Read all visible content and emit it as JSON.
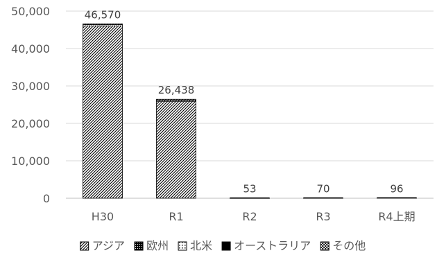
{
  "chart_data": {
    "type": "bar",
    "stacked": true,
    "title": "",
    "xlabel": "",
    "ylabel": "",
    "categories": [
      "H30",
      "R1",
      "R2",
      "R3",
      "R4上期"
    ],
    "ylim": [
      0,
      50000
    ],
    "yticks": [
      0,
      10000,
      20000,
      30000,
      40000,
      50000
    ],
    "ytick_labels": [
      "0",
      "10,000",
      "20,000",
      "30,000",
      "40,000",
      "50,000"
    ],
    "grid": true,
    "legend_position": "bottom",
    "totals": [
      46570,
      26438,
      53,
      70,
      96
    ],
    "total_labels": [
      "46,570",
      "26,438",
      "53",
      "70",
      "96"
    ],
    "series": [
      {
        "name": "アジア",
        "pattern": "diagonal-hatch",
        "color": "#000000",
        "values": [
          45900,
          25800,
          50,
          66,
          90
        ]
      },
      {
        "name": "欧州",
        "pattern": "grid-dense",
        "color": "#000000",
        "values": [
          250,
          200,
          1,
          2,
          2
        ]
      },
      {
        "name": "北米",
        "pattern": "dotted-box",
        "color": "#000000",
        "values": [
          120,
          120,
          1,
          1,
          2
        ]
      },
      {
        "name": "オーストラリア",
        "pattern": "solid",
        "color": "#000000",
        "values": [
          200,
          218,
          1,
          1,
          2
        ]
      },
      {
        "name": "その他",
        "pattern": "checker",
        "color": "#000000",
        "values": [
          100,
          100,
          0,
          0,
          0
        ]
      }
    ]
  }
}
